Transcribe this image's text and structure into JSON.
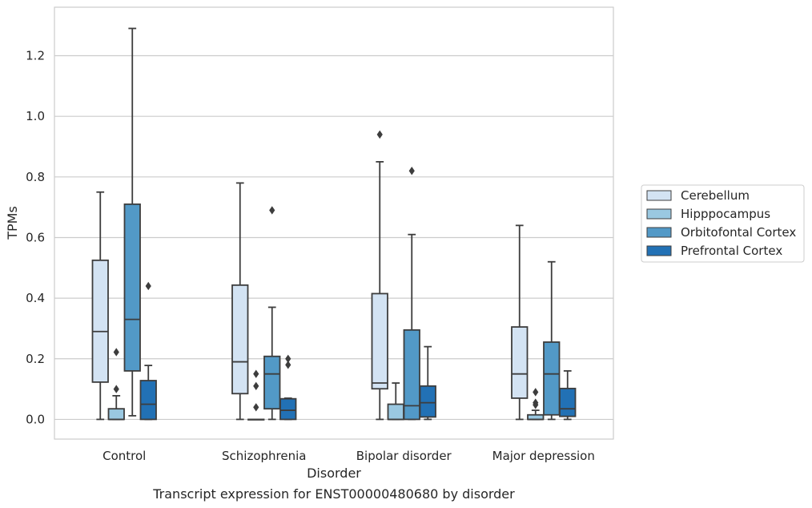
{
  "chart_data": {
    "type": "box",
    "caption": "Transcript expression for ENST00000480680 by disorder",
    "xlabel": "Disorder",
    "ylabel": "TPMs",
    "ylim": [
      -0.065,
      1.36
    ],
    "yticks": [
      0.0,
      0.2,
      0.4,
      0.6,
      0.8,
      1.0,
      1.2
    ],
    "ytick_labels": [
      "0.0",
      "0.2",
      "0.4",
      "0.6",
      "0.8",
      "1.0",
      "1.2"
    ],
    "grid": "horizontal",
    "legend_position": "right",
    "categories": [
      "Control",
      "Schizophrenia",
      "Bipolar disorder",
      "Major depression"
    ],
    "series": [
      {
        "name": "Cerebellum",
        "color": "#d3e3f3",
        "boxes": [
          {
            "whisker_low": 0.0,
            "q1": 0.123,
            "median": 0.29,
            "q3": 0.525,
            "whisker_high": 0.75,
            "outliers": []
          },
          {
            "whisker_low": 0.0,
            "q1": 0.085,
            "median": 0.19,
            "q3": 0.443,
            "whisker_high": 0.78,
            "outliers": []
          },
          {
            "whisker_low": 0.0,
            "q1": 0.101,
            "median": 0.12,
            "q3": 0.415,
            "whisker_high": 0.85,
            "outliers": [
              0.94
            ]
          },
          {
            "whisker_low": 0.0,
            "q1": 0.07,
            "median": 0.15,
            "q3": 0.305,
            "whisker_high": 0.64,
            "outliers": []
          }
        ]
      },
      {
        "name": "Hipppocampus",
        "color": "#9ac8e1",
        "boxes": [
          {
            "whisker_low": 0.0,
            "q1": 0.0,
            "median": 0.0,
            "q3": 0.035,
            "whisker_high": 0.078,
            "outliers": [
              0.1,
              0.222
            ]
          },
          {
            "whisker_low": 0.0,
            "q1": 0.0,
            "median": 0.0,
            "q3": 0.0,
            "whisker_high": 0.0,
            "outliers": [
              0.04,
              0.11,
              0.15
            ]
          },
          {
            "whisker_low": 0.0,
            "q1": 0.0,
            "median": 0.0,
            "q3": 0.05,
            "whisker_high": 0.12,
            "outliers": []
          },
          {
            "whisker_low": 0.0,
            "q1": 0.0,
            "median": 0.0,
            "q3": 0.015,
            "whisker_high": 0.03,
            "outliers": [
              0.048,
              0.055,
              0.09
            ]
          }
        ]
      },
      {
        "name": "Orbitofontal Cortex",
        "color": "#5299c7",
        "boxes": [
          {
            "whisker_low": 0.012,
            "q1": 0.16,
            "median": 0.33,
            "q3": 0.71,
            "whisker_high": 1.29,
            "outliers": []
          },
          {
            "whisker_low": 0.0,
            "q1": 0.035,
            "median": 0.15,
            "q3": 0.208,
            "whisker_high": 0.37,
            "outliers": [
              0.69
            ]
          },
          {
            "whisker_low": 0.0,
            "q1": 0.0,
            "median": 0.045,
            "q3": 0.295,
            "whisker_high": 0.61,
            "outliers": [
              0.82
            ]
          },
          {
            "whisker_low": 0.0,
            "q1": 0.015,
            "median": 0.15,
            "q3": 0.255,
            "whisker_high": 0.52,
            "outliers": []
          }
        ]
      },
      {
        "name": "Prefrontal Cortex",
        "color": "#2271b5",
        "boxes": [
          {
            "whisker_low": 0.0,
            "q1": 0.0,
            "median": 0.05,
            "q3": 0.128,
            "whisker_high": 0.178,
            "outliers": [
              0.44
            ]
          },
          {
            "whisker_low": 0.0,
            "q1": 0.0,
            "median": 0.03,
            "q3": 0.068,
            "whisker_high": 0.07,
            "outliers": [
              0.18,
              0.2
            ]
          },
          {
            "whisker_low": 0.0,
            "q1": 0.008,
            "median": 0.055,
            "q3": 0.11,
            "whisker_high": 0.24,
            "outliers": []
          },
          {
            "whisker_low": 0.0,
            "q1": 0.01,
            "median": 0.035,
            "q3": 0.102,
            "whisker_high": 0.16,
            "outliers": []
          }
        ]
      }
    ]
  }
}
